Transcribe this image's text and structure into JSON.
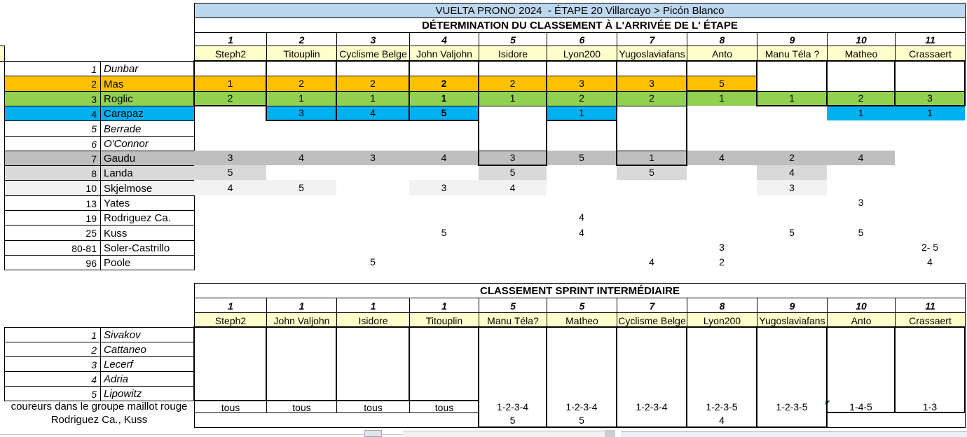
{
  "colors": {
    "band": "#BDD7EE",
    "yellow": "#FFFFCC",
    "orange": "#FFC000",
    "green": "#92D050",
    "blue": "#00B0F0",
    "gray1": "#BFBFBF",
    "gray2": "#D9D9D9",
    "gray3": "#F2F2F2"
  },
  "table1": {
    "title": "VUELTA PRONO 2024  - ÉTAPE 20 Villarcayo > Picón Blanco",
    "subtitle": "DÉTERMINATION DU CLASSEMENT À L'ARRIVÉE DE L' ÉTAPE",
    "columns": [
      {
        "rank": "1",
        "player": "Steph2"
      },
      {
        "rank": "2",
        "player": "Titouplin"
      },
      {
        "rank": "3",
        "player": "Cyclisme Belge"
      },
      {
        "rank": "4",
        "player": "John Valjohn"
      },
      {
        "rank": "5",
        "player": "Isidore"
      },
      {
        "rank": "6",
        "player": "Lyon200"
      },
      {
        "rank": "7",
        "player": "Yugoslaviafans"
      },
      {
        "rank": "8",
        "player": "Anto"
      },
      {
        "rank": "9",
        "player": "Manu Téla ?"
      },
      {
        "rank": "10",
        "player": "Matheo"
      },
      {
        "rank": "11",
        "player": "Crassaert"
      }
    ],
    "rows": [
      {
        "num": "1",
        "rider": "Dunbar",
        "italic": true,
        "fill": "",
        "cells": [
          "",
          "",
          "",
          "",
          "",
          "",
          "",
          "",
          "",
          "",
          ""
        ]
      },
      {
        "num": "2",
        "rider": "Mas",
        "italic": false,
        "fill": "orange",
        "cells": [
          "1",
          "2",
          "2",
          "2",
          "2",
          "3",
          "3",
          "5",
          "",
          "",
          ""
        ]
      },
      {
        "num": "3",
        "rider": "Roglic",
        "italic": false,
        "fill": "green",
        "cells": [
          "2",
          "1",
          "1",
          "1",
          "1",
          "2",
          "2",
          "1",
          "1",
          "2",
          "3"
        ]
      },
      {
        "num": "4",
        "rider": "Carapaz",
        "italic": false,
        "fill": "blue",
        "cells": [
          "",
          "3",
          "4",
          "5",
          "",
          "1",
          "",
          "",
          "",
          "1",
          "1"
        ]
      },
      {
        "num": "5",
        "rider": "Berrade",
        "italic": true,
        "fill": "",
        "cells": [
          "",
          "",
          "",
          "",
          "",
          "",
          "",
          "",
          "",
          "",
          ""
        ]
      },
      {
        "num": "6",
        "rider": "O'Connor",
        "italic": true,
        "fill": "",
        "cells": [
          "",
          "",
          "",
          "",
          "",
          "",
          "",
          "",
          "",
          "",
          ""
        ]
      },
      {
        "num": "7",
        "rider": "Gaudu",
        "italic": false,
        "fill": "gray1",
        "cells": [
          "3",
          "4",
          "3",
          "4",
          "3",
          "5",
          "1",
          "4",
          "2",
          "4",
          ""
        ]
      },
      {
        "num": "8",
        "rider": "Landa",
        "italic": false,
        "fill": "gray2",
        "cells": [
          "5",
          "",
          "",
          "",
          "5",
          "",
          "5",
          "",
          "4",
          "",
          ""
        ]
      },
      {
        "num": "10",
        "rider": "Skjelmose",
        "italic": false,
        "fill": "gray3",
        "cells": [
          "4",
          "5",
          "",
          "3",
          "4",
          "",
          "",
          "",
          "3",
          "",
          ""
        ]
      },
      {
        "num": "13",
        "rider": "Yates",
        "italic": false,
        "fill": "",
        "cells": [
          "",
          "",
          "",
          "",
          "",
          "",
          "",
          "",
          "",
          "3",
          ""
        ]
      },
      {
        "num": "19",
        "rider": "Rodriguez Ca.",
        "italic": false,
        "fill": "",
        "cells": [
          "",
          "",
          "",
          "",
          "",
          "4",
          "",
          "",
          "",
          "",
          ""
        ]
      },
      {
        "num": "25",
        "rider": "Kuss",
        "italic": false,
        "fill": "",
        "cells": [
          "",
          "",
          "",
          "5",
          "",
          "4",
          "",
          "",
          "5",
          "5",
          ""
        ]
      },
      {
        "num": "80-81",
        "rider": "Soler-Castrillo",
        "italic": false,
        "fill": "",
        "cells": [
          "",
          "",
          "",
          "",
          "",
          "",
          "",
          "3",
          "",
          "",
          "2- 5"
        ]
      },
      {
        "num": "96",
        "rider": "Poole",
        "italic": false,
        "fill": "",
        "cells": [
          "",
          "",
          "5",
          "",
          "",
          "",
          "4",
          "2",
          "",
          "",
          "4"
        ]
      }
    ],
    "bold_cells": [
      [
        1,
        3
      ],
      [
        2,
        3
      ],
      [
        3,
        3
      ]
    ],
    "outline_boxes": [
      {
        "col": 0,
        "last_row": 2
      },
      {
        "col": 1,
        "last_row": 3
      },
      {
        "col": 2,
        "last_row": 3
      },
      {
        "col": 3,
        "last_row": 3
      },
      {
        "col": 4,
        "last_row": 6
      },
      {
        "col": 5,
        "last_row": 3
      },
      {
        "col": 6,
        "last_row": 6
      },
      {
        "col": 7,
        "last_row": 1
      },
      {
        "col": 8,
        "last_row": 2
      },
      {
        "col": 9,
        "last_row": 2
      },
      {
        "col": 10,
        "last_row": 2
      }
    ]
  },
  "table2": {
    "title": "CLASSEMENT SPRINT INTERMÉDIAIRE",
    "columns": [
      {
        "rank": "1",
        "player": "Steph2"
      },
      {
        "rank": "1",
        "player": "John Valjohn"
      },
      {
        "rank": "1",
        "player": "Isidore"
      },
      {
        "rank": "1",
        "player": "Titouplin"
      },
      {
        "rank": "5",
        "player": "Manu Téla?"
      },
      {
        "rank": "5",
        "player": "Matheo"
      },
      {
        "rank": "7",
        "player": "Cyclisme Belge"
      },
      {
        "rank": "8",
        "player": "Lyon200"
      },
      {
        "rank": "9",
        "player": "Yugoslaviafans"
      },
      {
        "rank": "10",
        "player": "Anto"
      },
      {
        "rank": "11",
        "player": "Crassaert"
      }
    ],
    "riders": [
      {
        "num": "1",
        "name": "Sivakov"
      },
      {
        "num": "2",
        "name": "Cattaneo"
      },
      {
        "num": "3",
        "name": "Lecerf"
      },
      {
        "num": "4",
        "name": "Adria"
      },
      {
        "num": "5",
        "name": "Lipowitz"
      }
    ],
    "row_label_1": "coureurs dans le groupe maillot rouge",
    "row_label_2": "Rodriguez Ca., Kuss",
    "values_row1": [
      "tous",
      "tous",
      "tous",
      "tous",
      "1-2-3-4",
      "1-2-3-4",
      "1-2-3-4",
      "1-2-3-5",
      "1-2-3-5",
      "1-4-5",
      "1-3"
    ],
    "values_row2": [
      "",
      "",
      "",
      "",
      "5",
      "5",
      "",
      "4",
      "",
      "",
      ""
    ]
  }
}
